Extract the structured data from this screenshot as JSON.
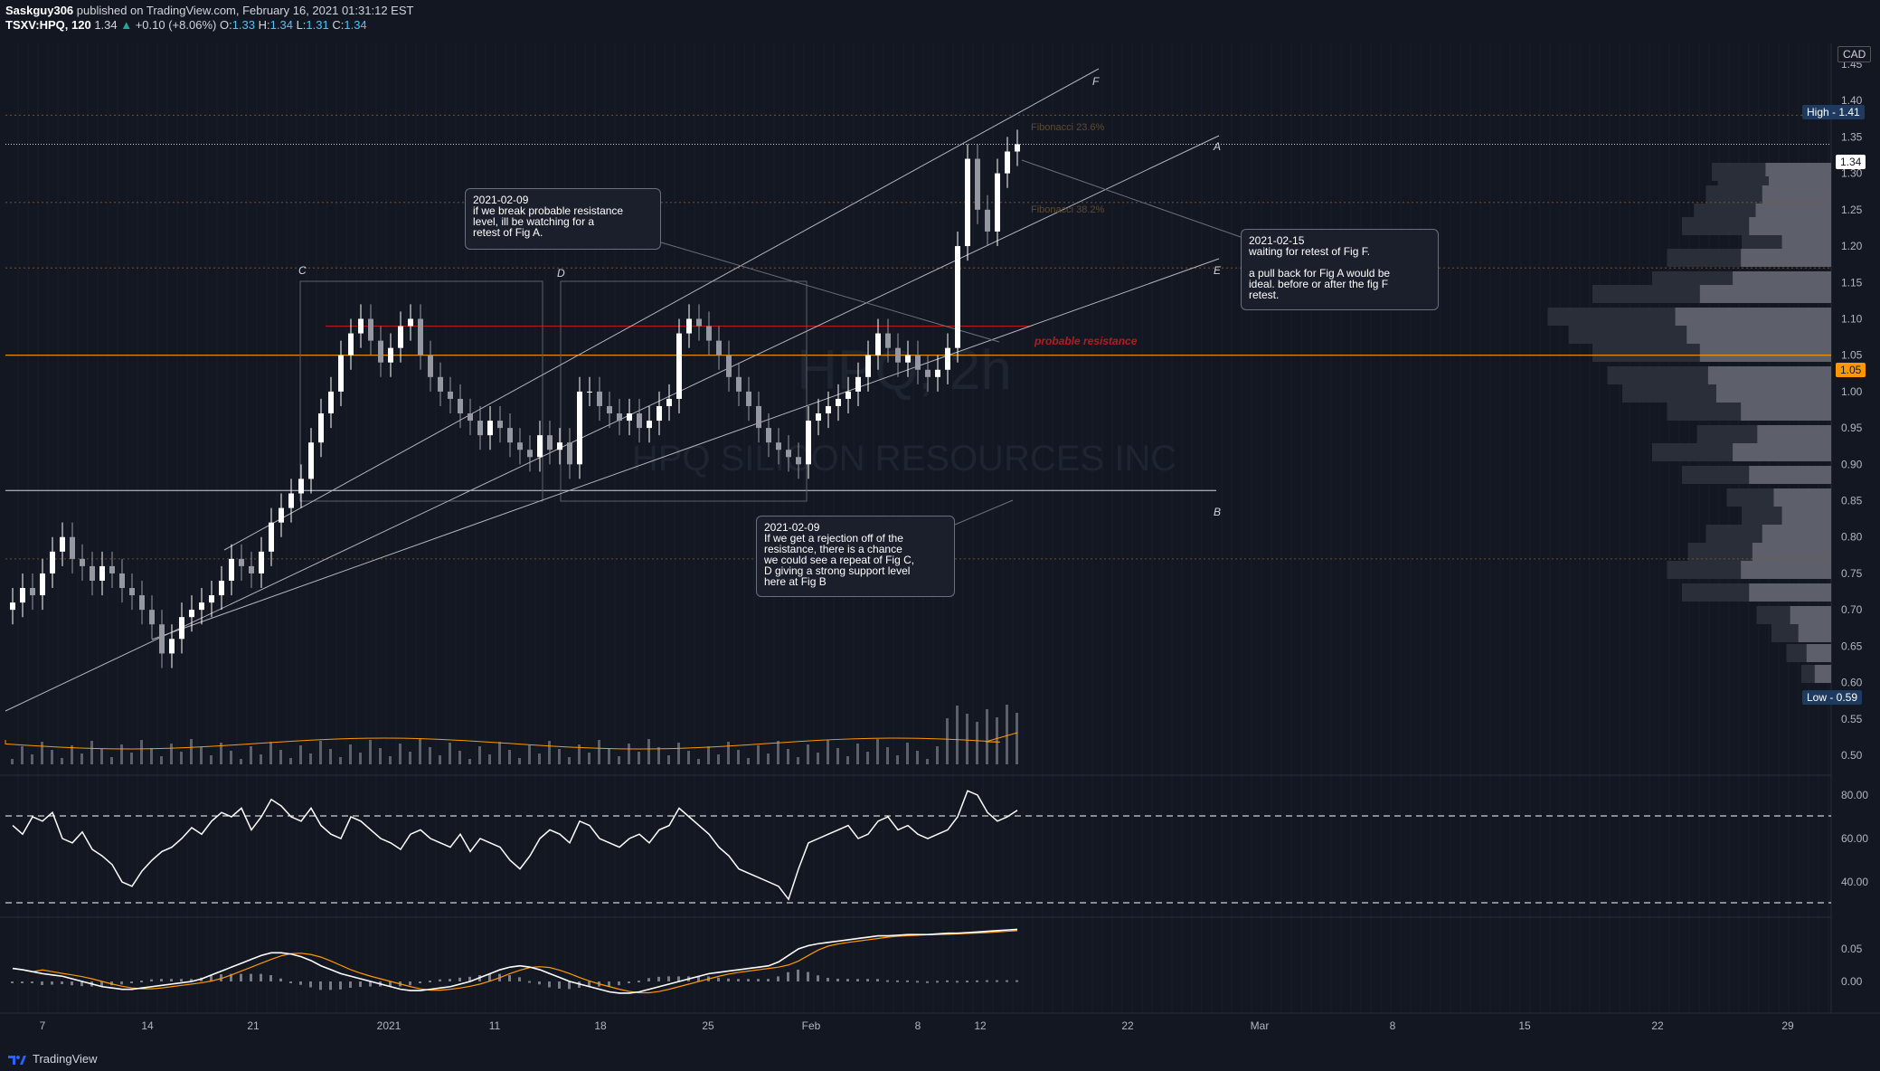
{
  "header": {
    "publisher": "Saskguy306",
    "published_text": " published on TradingView.com, February 16, 2021 01:31:12 EST",
    "symbol": "TSXV:HPQ",
    "interval": "120",
    "last": "1.34",
    "change": "+0.10 (+8.06%)",
    "o_label": "O:",
    "o": "1.33",
    "h_label": "H:",
    "h": "1.34",
    "l_label": "L:",
    "l": "1.31",
    "c_label": "C:",
    "c": "1.34"
  },
  "watermark": {
    "line1": "HPQ, 2h",
    "line2": "HPQ SILICON RESOURCES INC"
  },
  "currency": "CAD",
  "footer": {
    "brand": "TradingView"
  },
  "colors": {
    "background": "#131722",
    "up": "#ffffff",
    "down": "#9598a1",
    "orange": "#ff9800",
    "resistance": "#b71c1c",
    "rsi": "#ffffff",
    "macd_signal": "#ff9800"
  },
  "price_axis": {
    "ticks": [
      "1.45",
      "1.40",
      "1.35",
      "1.30",
      "1.25",
      "1.20",
      "1.15",
      "1.10",
      "1.05",
      "1.00",
      "0.95",
      "0.90",
      "0.85",
      "0.80",
      "0.75",
      "0.70",
      "0.65",
      "0.60",
      "0.55",
      "0.50"
    ]
  },
  "rsi_axis": {
    "ticks": [
      "80.00",
      "60.00",
      "40.00"
    ]
  },
  "macd_axis": {
    "ticks": [
      "0.05",
      "0.00"
    ]
  },
  "time_axis": {
    "ticks": [
      "7",
      "14",
      "21",
      "2021",
      "11",
      "18",
      "25",
      "Feb",
      "8",
      "12",
      "22",
      "Mar",
      "8",
      "15",
      "22",
      "29"
    ]
  },
  "labels": {
    "high": "High - 1.41",
    "low": "Low - 0.59",
    "last_price": "1.34",
    "orange_level": "1.05",
    "fib_236": "Fibonacci 23.6%",
    "fib_382": "Fibonacci 38.2%",
    "resistance": "probable resistance",
    "fig_a": "A",
    "fig_b": "B",
    "fig_c": "C",
    "fig_d": "D",
    "fig_e": "E",
    "fig_f": "F"
  },
  "notes": {
    "n1": "2021-02-09\nif we break probable resistance\nlevel, ill be watching for a\nretest of Fig A.",
    "n2": "2021-02-15\nwaiting for retest of Fig F.\n\na pull back for Fig A would be\nideal. before or after the fig F\nretest.",
    "n3": "2021-02-09\nIf we get a rejection off of the\nresistance, there is a chance\nwe could see a repeat of Fig C,\nD giving a strong support level\nhere at Fig B"
  },
  "chart_data": {
    "type": "candlestick",
    "symbol": "TSXV:HPQ",
    "interval": "120",
    "currency": "CAD",
    "y_range": [
      0.48,
      1.48
    ],
    "series": [
      {
        "name": "price",
        "close": [
          0.71,
          0.73,
          0.72,
          0.75,
          0.78,
          0.8,
          0.77,
          0.76,
          0.74,
          0.76,
          0.75,
          0.73,
          0.72,
          0.7,
          0.68,
          0.64,
          0.66,
          0.69,
          0.7,
          0.71,
          0.72,
          0.74,
          0.77,
          0.76,
          0.75,
          0.78,
          0.82,
          0.84,
          0.86,
          0.88,
          0.93,
          0.97,
          1.0,
          1.05,
          1.08,
          1.1,
          1.07,
          1.04,
          1.06,
          1.09,
          1.1,
          1.05,
          1.02,
          1.0,
          0.99,
          0.97,
          0.96,
          0.94,
          0.96,
          0.95,
          0.93,
          0.92,
          0.91,
          0.94,
          0.92,
          0.93,
          0.9,
          1.0,
          1.0,
          0.98,
          0.97,
          0.96,
          0.97,
          0.95,
          0.96,
          0.98,
          0.99,
          1.08,
          1.1,
          1.09,
          1.07,
          1.05,
          1.02,
          1.0,
          0.98,
          0.95,
          0.93,
          0.92,
          0.91,
          0.9,
          0.96,
          0.97,
          0.98,
          0.99,
          1.0,
          1.02,
          1.05,
          1.08,
          1.06,
          1.04,
          1.05,
          1.03,
          1.02,
          1.03,
          1.06,
          1.2,
          1.32,
          1.25,
          1.22,
          1.3,
          1.33,
          1.34
        ]
      },
      {
        "name": "RSI",
        "values": [
          66,
          62,
          70,
          68,
          72,
          60,
          58,
          63,
          55,
          52,
          48,
          40,
          38,
          45,
          50,
          54,
          56,
          60,
          65,
          62,
          68,
          72,
          70,
          74,
          64,
          70,
          78,
          75,
          70,
          68,
          74,
          66,
          62,
          60,
          70,
          68,
          64,
          60,
          58,
          55,
          62,
          64,
          60,
          58,
          56,
          62,
          54,
          60,
          58,
          56,
          50,
          46,
          52,
          60,
          64,
          62,
          58,
          68,
          66,
          60,
          58,
          56,
          60,
          62,
          58,
          64,
          66,
          74,
          70,
          66,
          62,
          56,
          52,
          46,
          44,
          42,
          40,
          38,
          32,
          46,
          58,
          60,
          62,
          64,
          66,
          60,
          62,
          68,
          70,
          64,
          66,
          62,
          60,
          62,
          64,
          70,
          82,
          80,
          72,
          68,
          70,
          73
        ]
      },
      {
        "name": "MACD",
        "values": [
          0.02,
          0.018,
          0.015,
          0.012,
          0.01,
          0.008,
          0.004,
          0.0,
          -0.004,
          -0.008,
          -0.01,
          -0.012,
          -0.012,
          -0.01,
          -0.008,
          -0.006,
          -0.004,
          -0.002,
          0.0,
          0.004,
          0.01,
          0.016,
          0.022,
          0.028,
          0.034,
          0.04,
          0.044,
          0.044,
          0.042,
          0.038,
          0.032,
          0.024,
          0.018,
          0.012,
          0.008,
          0.004,
          0.0,
          -0.004,
          -0.008,
          -0.012,
          -0.014,
          -0.014,
          -0.012,
          -0.01,
          -0.008,
          -0.004,
          0.0,
          0.006,
          0.012,
          0.018,
          0.022,
          0.024,
          0.022,
          0.018,
          0.012,
          0.006,
          0.0,
          -0.004,
          -0.008,
          -0.012,
          -0.016,
          -0.018,
          -0.018,
          -0.016,
          -0.012,
          -0.008,
          -0.004,
          0.0,
          0.004,
          0.008,
          0.012,
          0.014,
          0.016,
          0.018,
          0.02,
          0.022,
          0.024,
          0.03,
          0.04,
          0.05,
          0.055,
          0.058,
          0.06,
          0.062,
          0.064,
          0.066,
          0.068,
          0.07,
          0.07,
          0.071,
          0.072,
          0.072,
          0.072,
          0.073,
          0.074,
          0.074,
          0.075,
          0.076,
          0.077,
          0.078,
          0.079,
          0.08
        ]
      }
    ]
  }
}
